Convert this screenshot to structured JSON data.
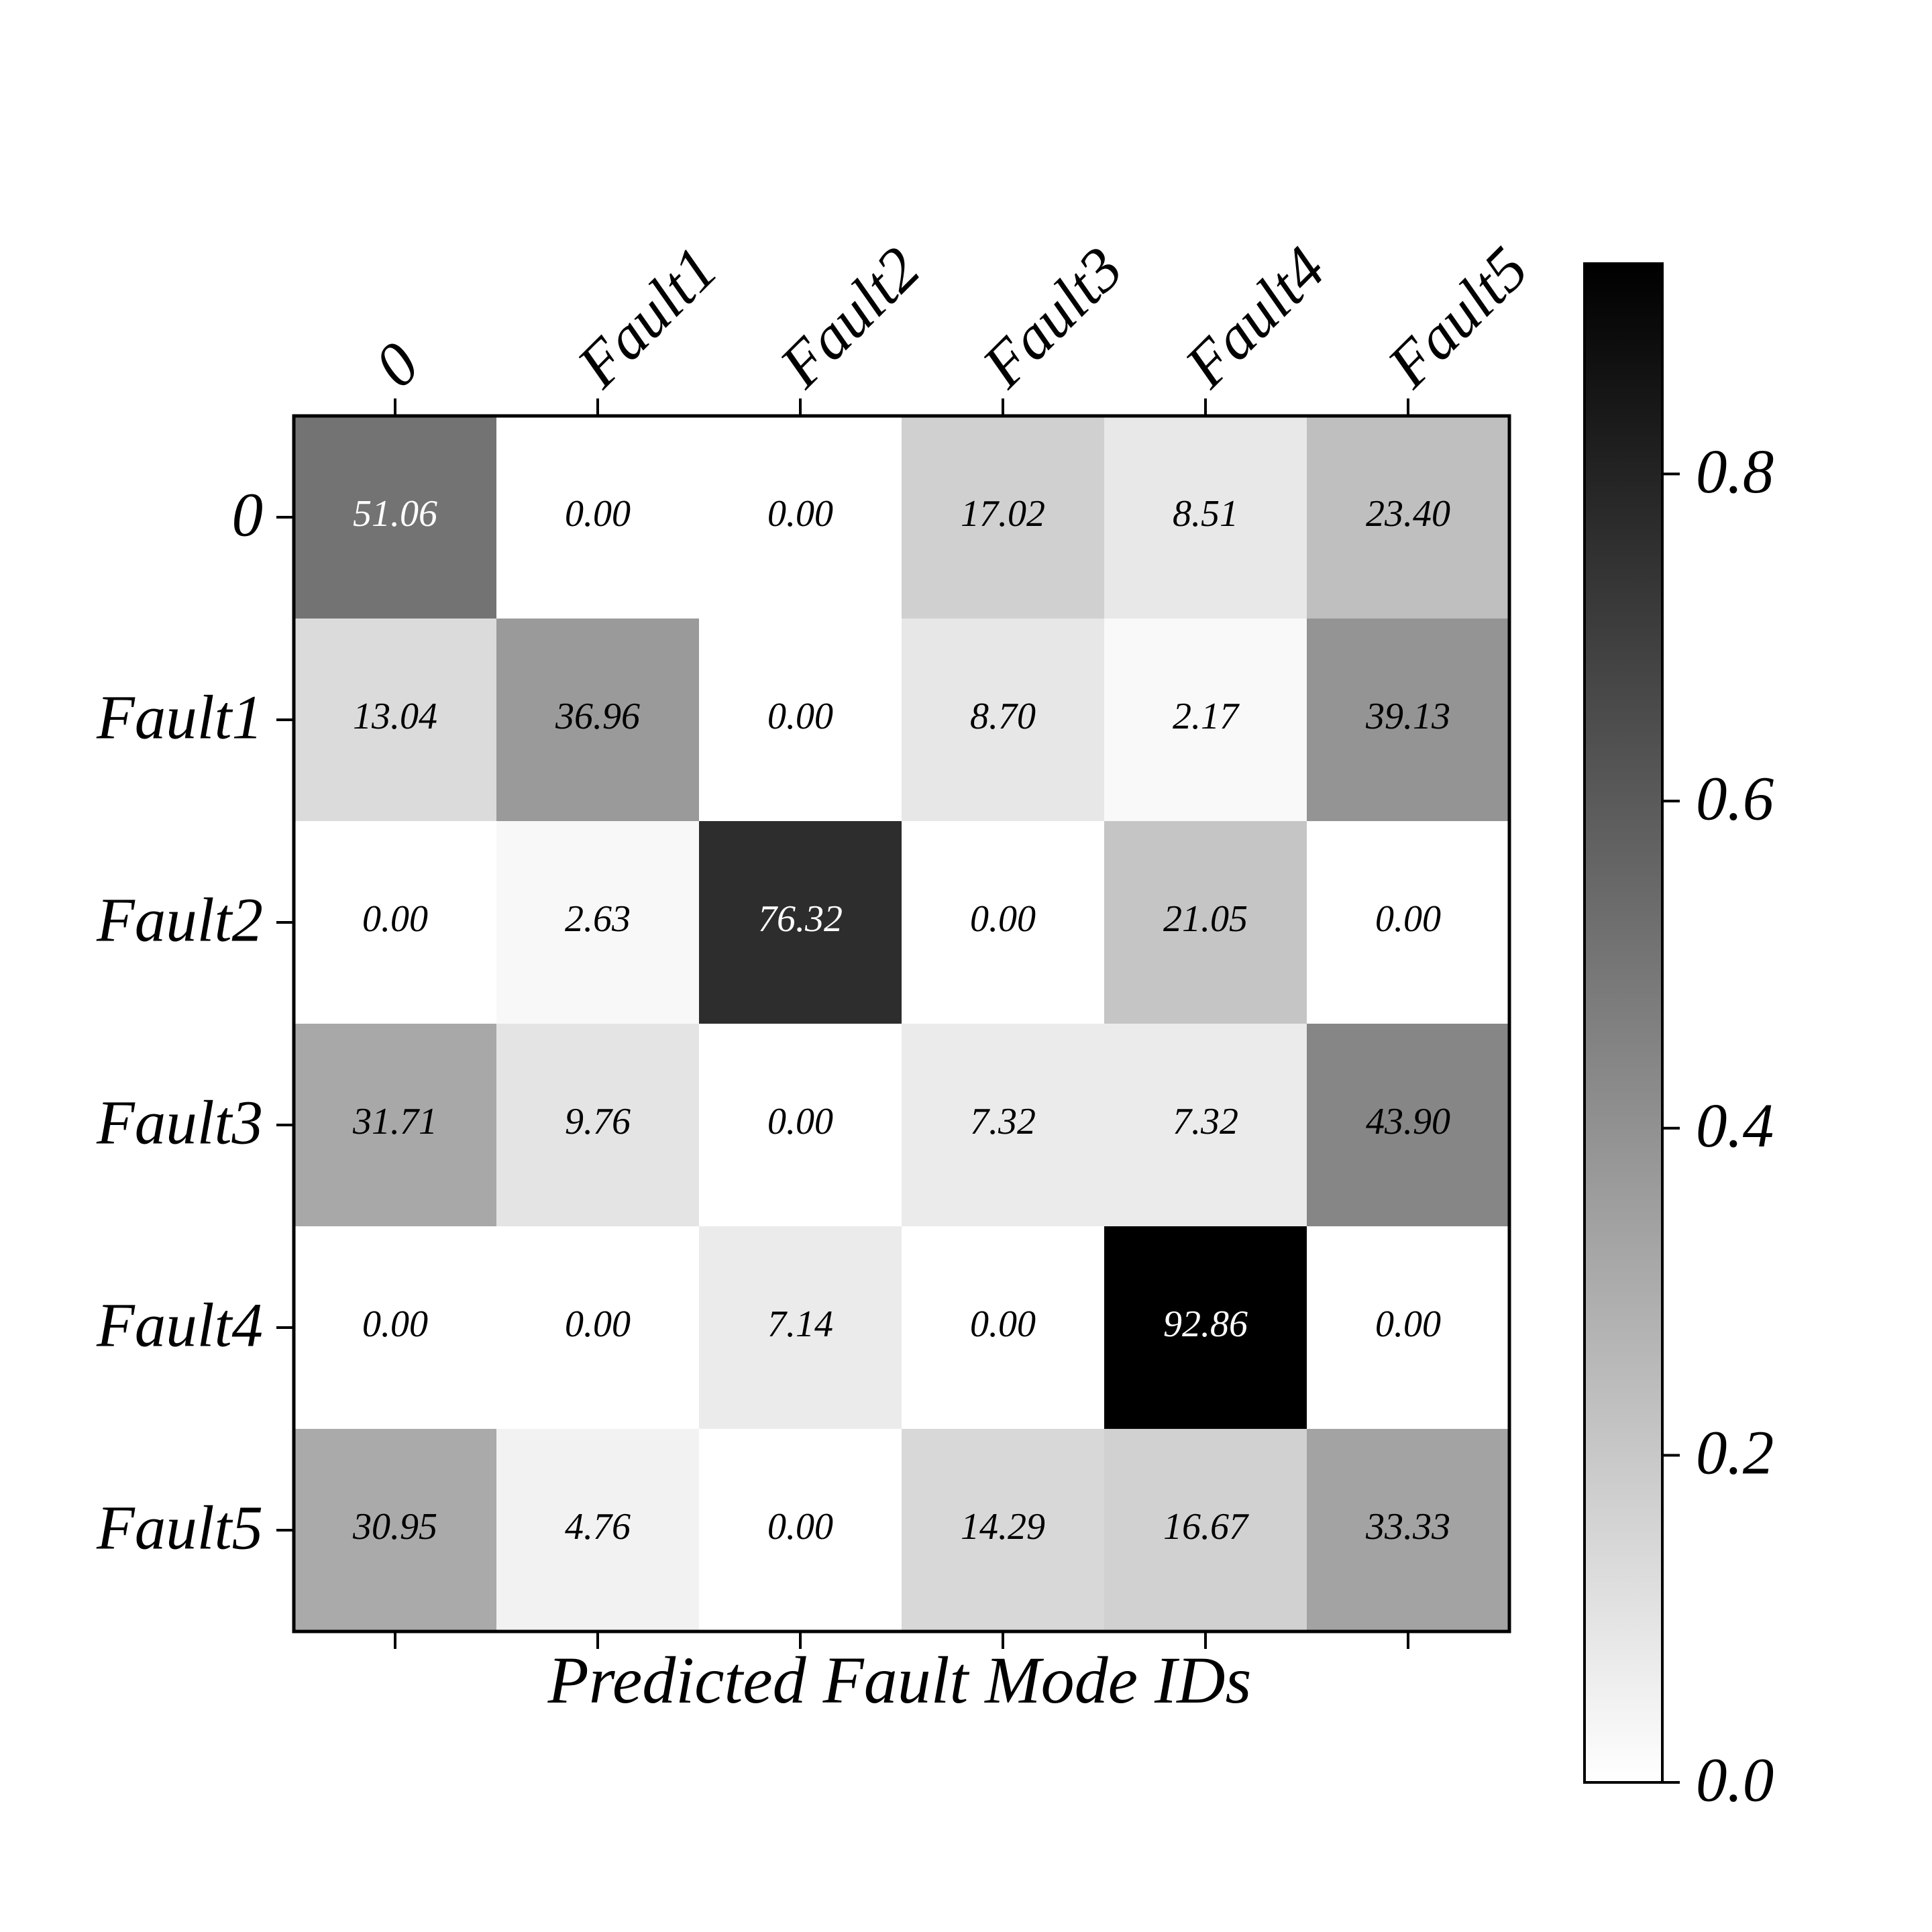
{
  "chart_data": {
    "type": "heatmap",
    "x_categories": [
      "0",
      "Fault1",
      "Fault2",
      "Fault3",
      "Fault4",
      "Fault5"
    ],
    "y_categories": [
      "0",
      "Fault1",
      "Fault2",
      "Fault3",
      "Fault4",
      "Fault5"
    ],
    "xlabel": "Predicted Fault Mode IDs",
    "values": [
      [
        51.06,
        0,
        0,
        17.02,
        8.51,
        23.4
      ],
      [
        13.04,
        36.96,
        0,
        8.7,
        2.17,
        39.13
      ],
      [
        0,
        2.63,
        76.32,
        0,
        21.05,
        0
      ],
      [
        31.71,
        9.76,
        0,
        7.32,
        7.32,
        43.9
      ],
      [
        0,
        0,
        7.14,
        0,
        92.86,
        0
      ],
      [
        30.95,
        4.76,
        0,
        14.29,
        16.67,
        33.33
      ]
    ],
    "value_labels": [
      [
        "51.06",
        "0.00",
        "0.00",
        "17.02",
        "8.51",
        "23.40"
      ],
      [
        "13.04",
        "36.96",
        "0.00",
        "8.70",
        "2.17",
        "39.13"
      ],
      [
        "0.00",
        "2.63",
        "76.32",
        "0.00",
        "21.05",
        "0.00"
      ],
      [
        "31.71",
        "9.76",
        "0.00",
        "7.32",
        "7.32",
        "43.90"
      ],
      [
        "0.00",
        "0.00",
        "7.14",
        "0.00",
        "92.86",
        "0.00"
      ],
      [
        "30.95",
        "4.76",
        "0.00",
        "14.29",
        "16.67",
        "33.33"
      ]
    ],
    "colormap": "Greys",
    "clim": [
      0,
      92.86
    ],
    "colorbar_ticks": [
      {
        "value": 0,
        "label": "0.0"
      },
      {
        "value": 20,
        "label": "0.2"
      },
      {
        "value": 40,
        "label": "0.4"
      },
      {
        "value": 60,
        "label": "0.6"
      },
      {
        "value": 80,
        "label": "0.8"
      }
    ]
  }
}
